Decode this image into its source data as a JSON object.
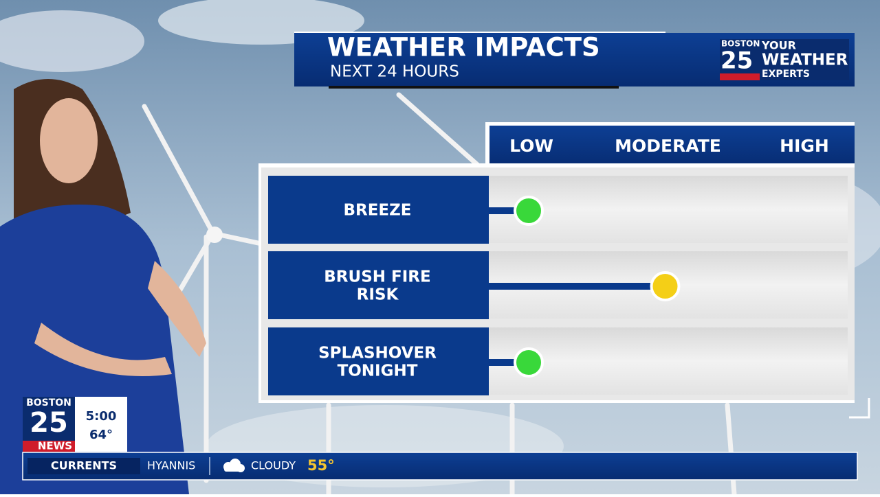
{
  "header": {
    "title": "WEATHER IMPACTS",
    "subtitle": "NEXT 24 HOURS"
  },
  "logo": {
    "station": "BOSTON",
    "number": "25",
    "line1": "YOUR",
    "line2": "WEATHER",
    "line3": "EXPERTS"
  },
  "scale": [
    "LOW",
    "MODERATE",
    "HIGH"
  ],
  "impacts": [
    {
      "label": [
        "BREEZE"
      ],
      "level": 0,
      "color": "#39d83a"
    },
    {
      "label": [
        "BRUSH FIRE",
        "RISK"
      ],
      "level": 1,
      "color": "#f4cf17"
    },
    {
      "label": [
        "SPLASHOVER",
        "TONIGHT"
      ],
      "level": 0,
      "color": "#39d83a"
    }
  ],
  "bug": {
    "station": "BOSTON",
    "number": "25",
    "brand": "NEWS",
    "time": "5:00",
    "temp": "64°"
  },
  "ticker": {
    "section": "CURRENTS",
    "location": "HYANNIS",
    "condition": "CLOUDY",
    "temp": "55°"
  }
}
